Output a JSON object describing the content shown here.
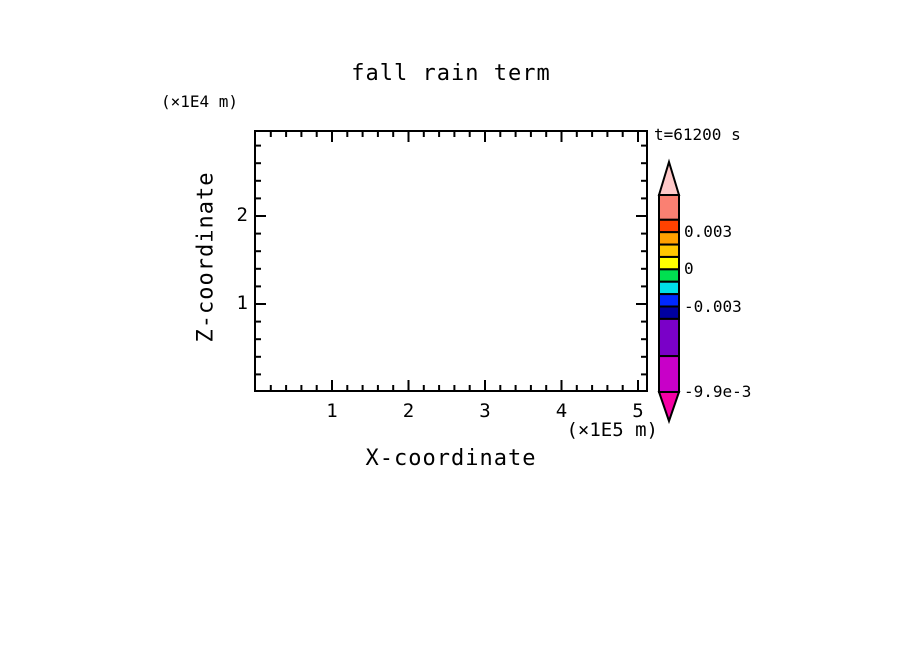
{
  "chart_data": {
    "type": "heatmap",
    "title": "fall rain term",
    "annotation": "t=61200 s",
    "xlabel": "X-coordinate",
    "ylabel": "Z-coordinate",
    "x_unit": "(×1E5 m)",
    "y_unit": "(×1E4 m)",
    "xlim": [
      0,
      5.12
    ],
    "ylim": [
      0,
      2.97
    ],
    "x_major_ticks": [
      1,
      2,
      3,
      4,
      5
    ],
    "y_major_ticks": [
      1,
      2
    ],
    "minor_tick_step": 0.2,
    "grid": false,
    "values": [],
    "plot_area_empty": true,
    "frame_color": "#000000",
    "colorbar": {
      "orientation": "vertical",
      "levels": [
        0.006,
        0.004,
        0.003,
        0.002,
        0.001,
        0,
        -0.001,
        -0.002,
        -0.003,
        -0.004,
        -0.007,
        -0.0099
      ],
      "colors": [
        "#FA8072",
        "#FF4200",
        "#FFA000",
        "#FFC800",
        "#FFFF00",
        "#00E050",
        "#00E0E8",
        "#0028FF",
        "#0000A0",
        "#7A00C8",
        "#C800C8"
      ],
      "over_arrow_color": "#FFC8C8",
      "under_arrow_color": "#F500A5",
      "tick_labels": [
        {
          "value": 0.003,
          "text": "0.003"
        },
        {
          "value": 0,
          "text": "0"
        },
        {
          "value": -0.003,
          "text": "-0.003"
        },
        {
          "value": -0.0099,
          "text": "-9.9e-3"
        }
      ]
    }
  }
}
